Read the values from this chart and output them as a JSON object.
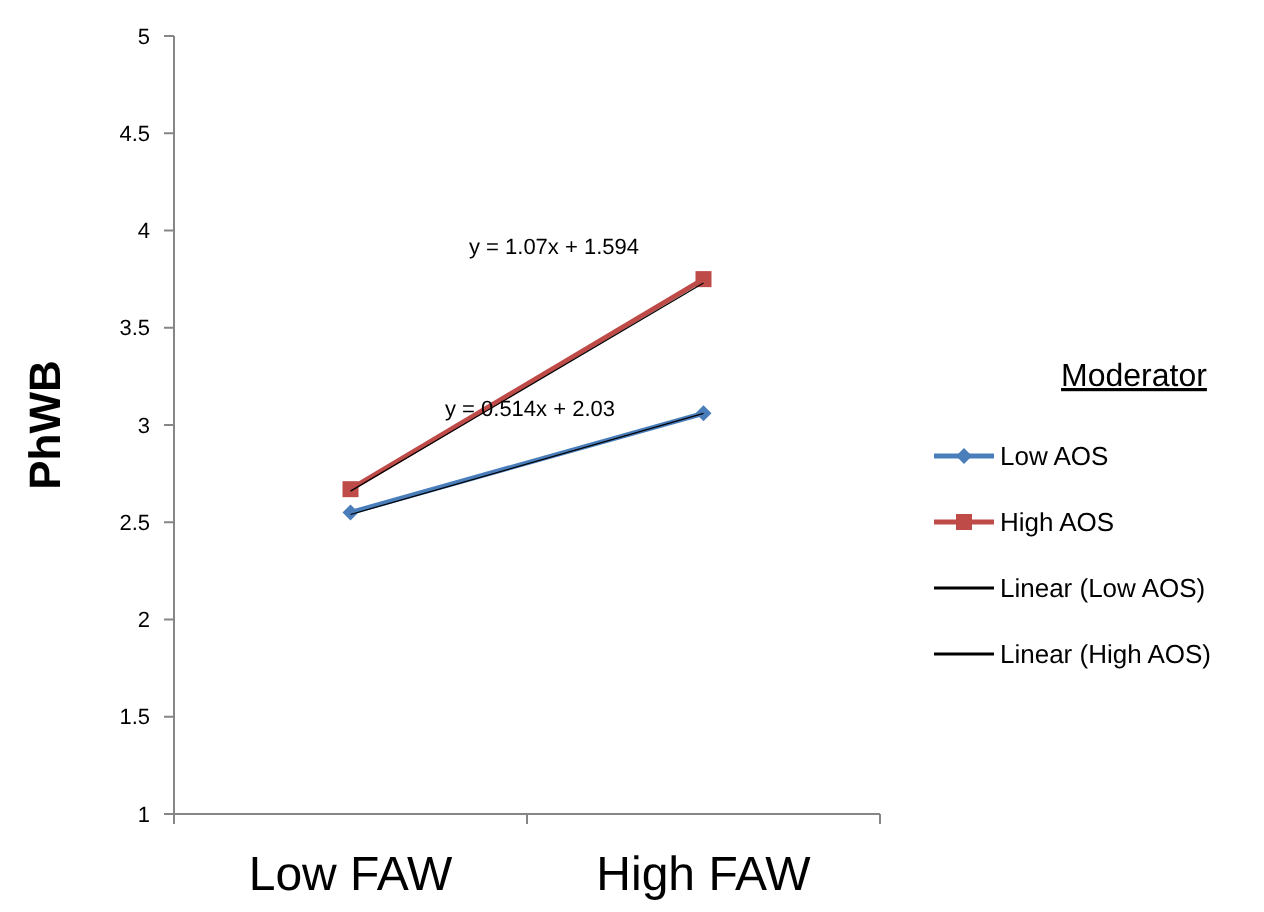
{
  "chart_data": {
    "type": "line",
    "ylabel": "PhWB",
    "legend_title": "Moderator",
    "categories": [
      "Low FAW",
      "High FAW"
    ],
    "ylim": [
      1,
      5
    ],
    "yticks": [
      1,
      1.5,
      2,
      2.5,
      3,
      3.5,
      4,
      4.5,
      5
    ],
    "grid": false,
    "legend": "right",
    "series": [
      {
        "name": "Low AOS",
        "color": "#4a7ebb",
        "values": [
          2.55,
          3.06
        ],
        "marker": "diamond"
      },
      {
        "name": "High AOS",
        "color": "#be4b48",
        "values": [
          2.67,
          3.75
        ],
        "marker": "square"
      },
      {
        "name": "Linear (Low AOS)",
        "color": "#000000",
        "values": [
          2.54,
          3.06
        ],
        "marker": "none"
      },
      {
        "name": "Linear (High AOS)",
        "color": "#000000",
        "values": [
          2.66,
          3.73
        ],
        "marker": "none"
      }
    ],
    "annotations": [
      "y = 1.07x + 1.594",
      "y = 0.514x + 2.03"
    ]
  }
}
